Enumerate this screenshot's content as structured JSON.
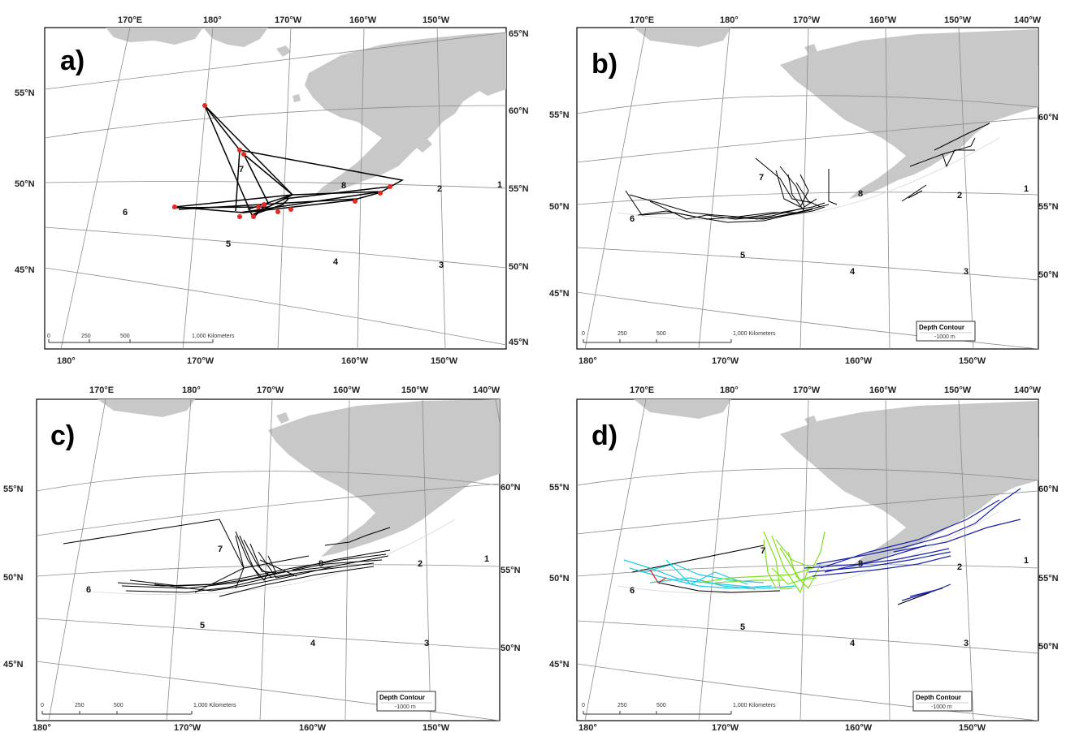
{
  "panels": [
    {
      "id": "a",
      "letter": "a)",
      "top_labels": [
        "170°E",
        "180°",
        "170°W",
        "160°W",
        "150°W"
      ],
      "bottom_labels": [
        "180°",
        "170°W",
        "160°W",
        "150°W"
      ],
      "left_labels": [
        "55°N",
        "50°N",
        "45°N"
      ],
      "right_labels": [
        "65°N",
        "60°N",
        "55°N",
        "50°N",
        "45°N"
      ],
      "region_numbers": [
        "1",
        "2",
        "3",
        "4",
        "5",
        "6",
        "7",
        "8"
      ],
      "scale": [
        "0",
        "250",
        "500",
        "1,000 Kilometers"
      ],
      "has_depth_legend": false,
      "track_color": "#000000",
      "marker_color": "#e8291f"
    },
    {
      "id": "b",
      "letter": "b)",
      "top_labels": [
        "170°E",
        "180°",
        "170°W",
        "160°W",
        "150°W",
        "140°W"
      ],
      "bottom_labels": [
        "180°",
        "170°W",
        "160°W",
        "150°W"
      ],
      "left_labels": [
        "55°N",
        "50°N",
        "45°N"
      ],
      "right_labels": [
        "60°N",
        "55°N",
        "50°N"
      ],
      "region_numbers": [
        "1",
        "2",
        "3",
        "4",
        "5",
        "6",
        "7",
        "8"
      ],
      "scale": [
        "0",
        "250",
        "500",
        "1,000 Kilometers"
      ],
      "has_depth_legend": true,
      "legend_title": "Depth Contour",
      "legend_sub": "-1000 m",
      "track_color": "#000000"
    },
    {
      "id": "c",
      "letter": "c)",
      "top_labels": [
        "170°E",
        "180°",
        "170°W",
        "160°W",
        "150°W",
        "140°W"
      ],
      "bottom_labels": [
        "180°",
        "170°W",
        "160°W",
        "150°W"
      ],
      "left_labels": [
        "55°N",
        "50°N",
        "45°N"
      ],
      "right_labels": [
        "60°N",
        "55°N",
        "50°N"
      ],
      "region_numbers": [
        "1",
        "2",
        "3",
        "4",
        "5",
        "6",
        "7",
        "8"
      ],
      "scale": [
        "0",
        "250",
        "500",
        "1,000 Kilometers"
      ],
      "has_depth_legend": true,
      "legend_title": "Depth Contour",
      "legend_sub": "-1000 m",
      "track_color": "#000000"
    },
    {
      "id": "d",
      "letter": "d)",
      "top_labels": [
        "170°E",
        "180°",
        "170°W",
        "160°W",
        "150°W",
        "140°W"
      ],
      "bottom_labels": [
        "180°",
        "170°W",
        "160°W",
        "150°W"
      ],
      "left_labels": [
        "55°N",
        "50°N",
        "45°N"
      ],
      "right_labels": [
        "60°N",
        "55°N",
        "50°N"
      ],
      "region_numbers": [
        "1",
        "2",
        "3",
        "4",
        "5",
        "6",
        "7",
        "8"
      ],
      "scale": [
        "0",
        "250",
        "500",
        "1,000 Kilometers"
      ],
      "has_depth_legend": true,
      "legend_title": "Depth Contour",
      "legend_sub": "-1000 m",
      "track_colors": [
        "#000000",
        "#22c7e0",
        "#7fe01f",
        "#1a23a8",
        "#d42020"
      ]
    }
  ],
  "colors": {
    "land": "#c8c8c8",
    "graticule": "#8c8c8c",
    "frame": "#000000",
    "background": "#ffffff"
  }
}
